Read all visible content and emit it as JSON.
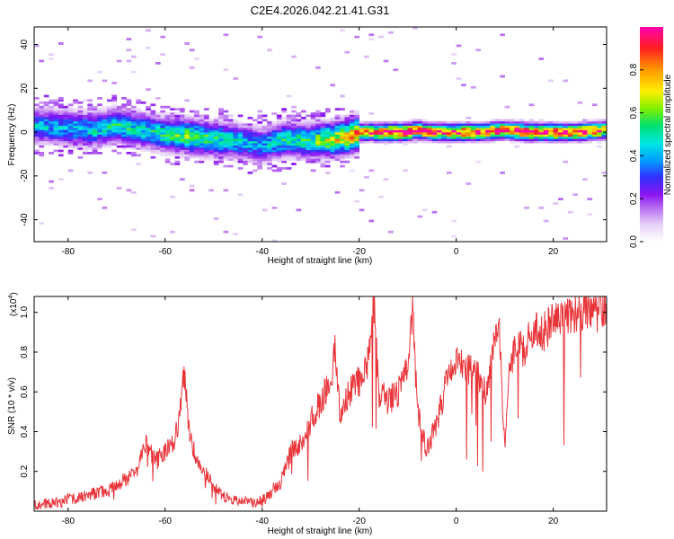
{
  "title": "C2E4.2026.042.21.41.G31",
  "colors": {
    "signal": "#e8353a",
    "colormap": [
      "#ffffff",
      "#e6d0f7",
      "#b66af0",
      "#8a15f0",
      "#3030ff",
      "#00a0ff",
      "#00e8e0",
      "#00e070",
      "#80f000",
      "#ffee00",
      "#ff9a00",
      "#ff2020",
      "#ff00b0"
    ]
  },
  "chart_data": [
    {
      "type": "heatmap",
      "title": "C2E4.2026.042.21.41.G31",
      "xlabel": "Height of straight line (km)",
      "ylabel": "Frequency (Hz)",
      "xlim": [
        -87,
        31
      ],
      "ylim": [
        -50,
        48
      ],
      "xticks": [
        -80,
        -60,
        -40,
        -20,
        0,
        20
      ],
      "yticks": [
        -40,
        -20,
        0,
        20,
        40
      ],
      "colorbar": {
        "label": "Normalized spectral amplitude",
        "range": [
          0,
          1
        ],
        "ticks": [
          "0.0",
          "0.2",
          "0.4",
          "0.6",
          "0.8"
        ]
      },
      "ridge": {
        "x": [
          -87,
          -80,
          -75,
          -70,
          -65,
          -60,
          -55,
          -50,
          -45,
          -40,
          -35,
          -30,
          -25,
          -22,
          -20,
          -15,
          -10,
          -8,
          -5,
          0,
          5,
          10,
          15,
          20,
          25,
          31
        ],
        "freq": [
          3,
          2,
          1,
          3,
          1,
          -1,
          -2,
          -3,
          -4,
          -6,
          -3,
          -4,
          -3,
          -2,
          0,
          0,
          0,
          1,
          0,
          0,
          0,
          1,
          0,
          0,
          0,
          1
        ],
        "amplitude": [
          0.4,
          0.42,
          0.45,
          0.5,
          0.45,
          0.5,
          0.6,
          0.5,
          0.45,
          0.4,
          0.5,
          0.5,
          0.7,
          0.75,
          0.8,
          0.95,
          0.95,
          0.9,
          0.9,
          0.9,
          0.92,
          0.9,
          0.95,
          0.95,
          0.9,
          0.85
        ]
      }
    },
    {
      "type": "line",
      "xlabel": "Height of straight line (km)",
      "ylabel": "SNR (10 * v/v)",
      "scale_label": "(x10",
      "scale_exp": "4",
      "scale_close": ")",
      "xlim": [
        -87,
        31
      ],
      "ylim": [
        0,
        1.08
      ],
      "xticks": [
        -80,
        -60,
        -40,
        -20,
        0,
        20
      ],
      "yticks": [
        0.2,
        0.4,
        0.6,
        0.8,
        1.0
      ],
      "series": [
        {
          "name": "SNR",
          "x": [
            -87,
            -84,
            -80,
            -76,
            -72,
            -70,
            -68,
            -66,
            -64,
            -62,
            -60,
            -58,
            -57,
            -56,
            -55,
            -54,
            -52,
            -50,
            -48,
            -46,
            -44,
            -42,
            -40,
            -38,
            -36,
            -34,
            -32,
            -30,
            -28,
            -26,
            -25,
            -24,
            -22,
            -20,
            -18,
            -17,
            -16,
            -14,
            -12,
            -10,
            -9,
            -8,
            -6,
            -4,
            -2,
            0,
            2,
            4,
            6,
            8,
            9,
            10,
            11,
            12,
            14,
            16,
            18,
            20,
            22,
            24,
            26,
            28,
            31
          ],
          "values": [
            0.03,
            0.04,
            0.06,
            0.08,
            0.1,
            0.14,
            0.16,
            0.2,
            0.35,
            0.25,
            0.3,
            0.35,
            0.5,
            0.7,
            0.4,
            0.3,
            0.2,
            0.12,
            0.08,
            0.06,
            0.05,
            0.04,
            0.05,
            0.1,
            0.15,
            0.3,
            0.35,
            0.45,
            0.55,
            0.65,
            0.8,
            0.5,
            0.6,
            0.65,
            0.75,
            1.08,
            0.6,
            0.55,
            0.6,
            0.7,
            1.0,
            0.5,
            0.3,
            0.45,
            0.65,
            0.75,
            0.7,
            0.7,
            0.6,
            0.85,
            0.9,
            0.3,
            0.7,
            0.85,
            0.82,
            0.9,
            0.9,
            0.95,
            0.95,
            0.98,
            1.0,
            1.02,
            1.0
          ]
        }
      ]
    }
  ]
}
